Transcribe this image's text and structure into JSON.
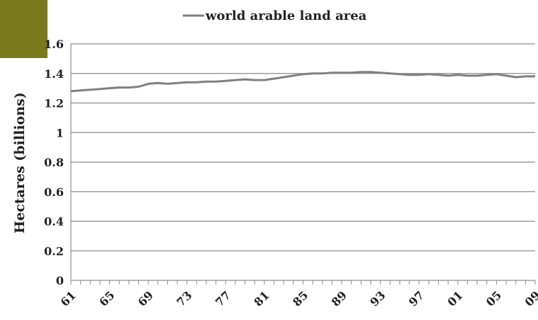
{
  "chart_data": {
    "type": "line",
    "legend_position": "top",
    "grid": true,
    "ylabel": "Hectares (billions)",
    "xlabel": "",
    "ylim": [
      0,
      1.6
    ],
    "yticks": [
      "0",
      "0.2",
      "0.4",
      "0.6",
      "0.8",
      "1",
      "1.2",
      "1.4",
      "1.6"
    ],
    "xticks": [
      "61",
      "65",
      "69",
      "73",
      "77",
      "81",
      "85",
      "89",
      "93",
      "97",
      "01",
      "05",
      "09"
    ],
    "x": [
      1961,
      1962,
      1963,
      1964,
      1965,
      1966,
      1967,
      1968,
      1969,
      1970,
      1971,
      1972,
      1973,
      1974,
      1975,
      1976,
      1977,
      1978,
      1979,
      1980,
      1981,
      1982,
      1983,
      1984,
      1985,
      1986,
      1987,
      1988,
      1989,
      1990,
      1991,
      1992,
      1993,
      1994,
      1995,
      1996,
      1997,
      1998,
      1999,
      2000,
      2001,
      2002,
      2003,
      2004,
      2005,
      2006,
      2007,
      2008,
      2009
    ],
    "series": [
      {
        "name": "world arable land area",
        "color": "#808080",
        "values": [
          1.28,
          1.285,
          1.29,
          1.295,
          1.3,
          1.305,
          1.305,
          1.31,
          1.33,
          1.335,
          1.33,
          1.335,
          1.34,
          1.34,
          1.345,
          1.345,
          1.35,
          1.355,
          1.36,
          1.355,
          1.355,
          1.365,
          1.375,
          1.385,
          1.395,
          1.4,
          1.4,
          1.405,
          1.405,
          1.405,
          1.41,
          1.41,
          1.405,
          1.4,
          1.395,
          1.39,
          1.39,
          1.395,
          1.39,
          1.385,
          1.39,
          1.385,
          1.385,
          1.39,
          1.395,
          1.385,
          1.375,
          1.38,
          1.38
        ]
      }
    ]
  }
}
